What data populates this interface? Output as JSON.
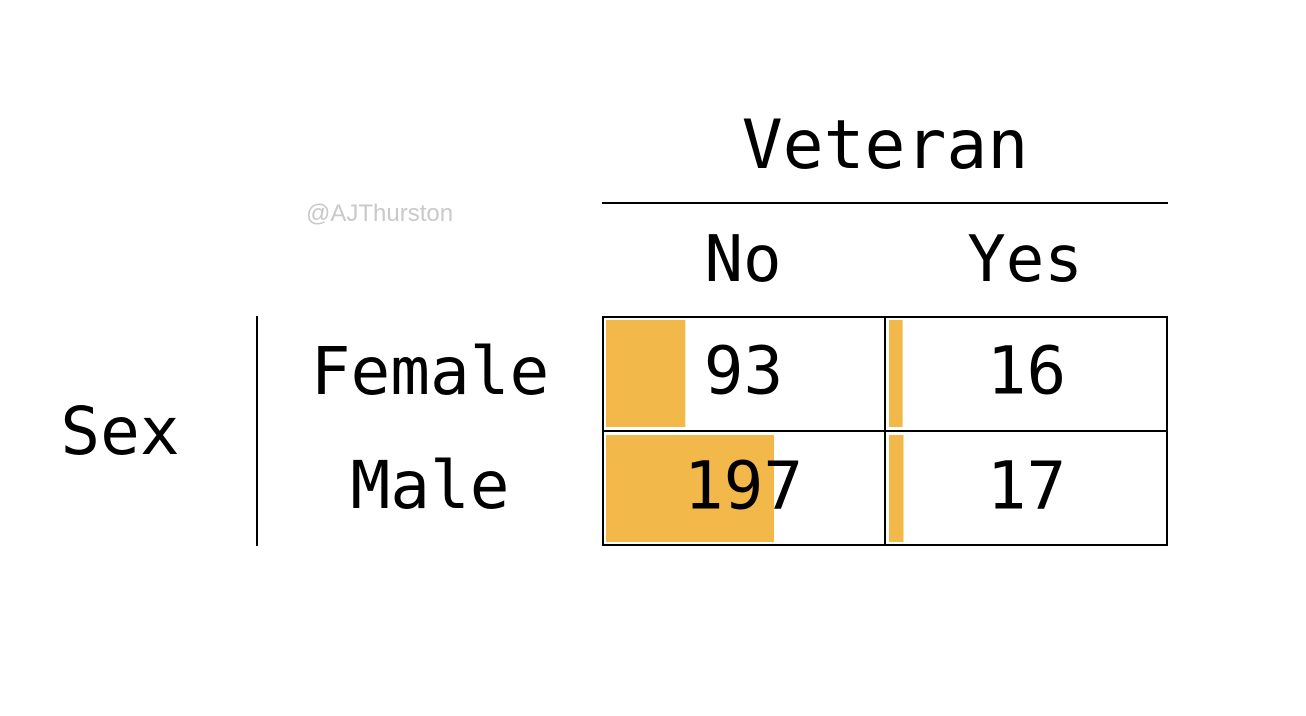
{
  "watermark": "@AJThurston",
  "chart_data": {
    "type": "table",
    "col_variable": "Veteran",
    "row_variable": "Sex",
    "columns": [
      "No",
      "Yes"
    ],
    "rows": [
      "Female",
      "Male"
    ],
    "values": [
      [
        93,
        16
      ],
      [
        197,
        17
      ]
    ],
    "bar_max": 197,
    "bar_color": "#F2B94A"
  }
}
